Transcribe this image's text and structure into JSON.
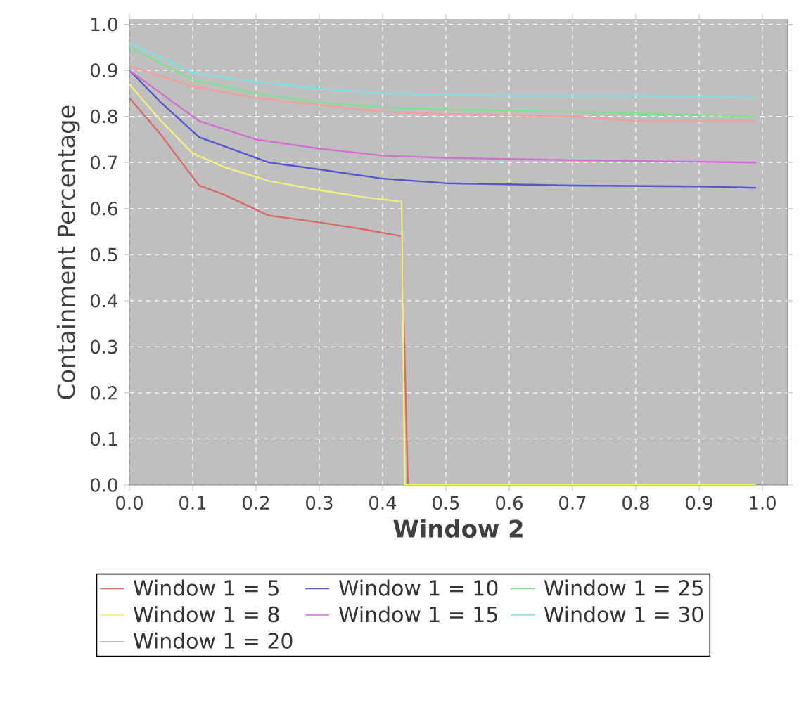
{
  "chart_data": {
    "type": "line",
    "xlabel": "Window 2",
    "ylabel": "Containment Percentage",
    "xlim": [
      0,
      1.04
    ],
    "ylim": [
      0,
      1.01
    ],
    "xticks": [
      {
        "value": 0,
        "label": "0.0"
      },
      0.1,
      0.2,
      0.3,
      0.4,
      0.5,
      0.6,
      0.7,
      0.8,
      0.9,
      {
        "value": 1,
        "label": "1.0"
      }
    ],
    "yticks": [
      {
        "value": 0,
        "label": "0.0"
      },
      0.1,
      0.2,
      0.3,
      0.4,
      0.5,
      0.6,
      0.7,
      0.8,
      0.9,
      {
        "value": 1,
        "label": "1.0"
      }
    ],
    "grid": true,
    "legend": "bottom",
    "marker": "none",
    "line_style": "solid",
    "series": [
      {
        "name": "Window 1 = 5",
        "color": "#d96a6a",
        "x": [
          0,
          0.05,
          0.11,
          0.15,
          0.22,
          0.3,
          0.37,
          0.43,
          0.44,
          0.99
        ],
        "values": [
          0.84,
          0.76,
          0.65,
          0.63,
          0.585,
          0.57,
          0.555,
          0.54,
          0.0,
          0.0
        ]
      },
      {
        "name": "Window 1 = 10",
        "color": "#5555cc",
        "x": [
          0,
          0.05,
          0.11,
          0.15,
          0.22,
          0.3,
          0.4,
          0.5,
          0.7,
          0.9,
          0.99
        ],
        "values": [
          0.9,
          0.83,
          0.755,
          0.735,
          0.7,
          0.685,
          0.665,
          0.655,
          0.65,
          0.648,
          0.645
        ]
      },
      {
        "name": "Window 1 = 25",
        "color": "#80e090",
        "x": [
          0,
          0.1,
          0.2,
          0.3,
          0.4,
          0.5,
          0.7,
          0.99
        ],
        "values": [
          0.95,
          0.88,
          0.85,
          0.83,
          0.82,
          0.815,
          0.81,
          0.8
        ]
      },
      {
        "name": "Window 1 = 8",
        "color": "#f0f080",
        "x": [
          0,
          0.05,
          0.1,
          0.15,
          0.22,
          0.3,
          0.37,
          0.43,
          0.435,
          0.99
        ],
        "values": [
          0.87,
          0.79,
          0.72,
          0.69,
          0.66,
          0.64,
          0.625,
          0.615,
          0.0,
          0.0
        ]
      },
      {
        "name": "Window 1 = 15",
        "color": "#d070d0",
        "x": [
          0,
          0.05,
          0.11,
          0.2,
          0.3,
          0.4,
          0.5,
          0.7,
          0.99
        ],
        "values": [
          0.9,
          0.85,
          0.79,
          0.75,
          0.73,
          0.715,
          0.71,
          0.705,
          0.7
        ]
      },
      {
        "name": "Window 1 = 30",
        "color": "#80e0e0",
        "x": [
          0,
          0.1,
          0.2,
          0.3,
          0.4,
          0.6,
          0.8,
          0.99
        ],
        "values": [
          0.96,
          0.895,
          0.875,
          0.86,
          0.85,
          0.845,
          0.845,
          0.84
        ]
      },
      {
        "name": "Window 1 = 20",
        "color": "#f0a0a0",
        "x": [
          0,
          0.1,
          0.2,
          0.3,
          0.4,
          0.5,
          0.7,
          0.8,
          0.99
        ],
        "values": [
          0.91,
          0.865,
          0.84,
          0.825,
          0.81,
          0.805,
          0.8,
          0.79,
          0.79
        ]
      }
    ]
  }
}
